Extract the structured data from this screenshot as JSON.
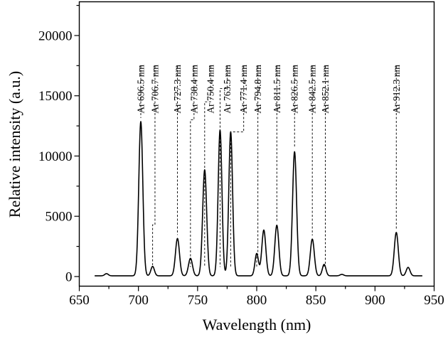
{
  "chart_data": {
    "type": "line",
    "xlabel": "Wavelength (nm)",
    "ylabel": "Relative intensity (a.u.)",
    "xlim": [
      650,
      950
    ],
    "ylim": [
      -800,
      22800
    ],
    "xticks": [
      650,
      700,
      750,
      800,
      850,
      900,
      950
    ],
    "yticks": [
      0,
      5000,
      10000,
      15000,
      20000
    ],
    "baseline": 60,
    "peaks": [
      {
        "x": 673,
        "y": 180,
        "w": 1.5
      },
      {
        "x": 702,
        "y": 12800,
        "w": 1.7
      },
      {
        "x": 712,
        "y": 780,
        "w": 1.5
      },
      {
        "x": 733,
        "y": 3100,
        "w": 1.7
      },
      {
        "x": 744,
        "y": 1450,
        "w": 1.7
      },
      {
        "x": 756,
        "y": 8800,
        "w": 1.7
      },
      {
        "x": 769,
        "y": 12100,
        "w": 1.6
      },
      {
        "x": 778,
        "y": 11950,
        "w": 1.6
      },
      {
        "x": 800,
        "y": 1850,
        "w": 1.5
      },
      {
        "x": 806,
        "y": 3800,
        "w": 1.7
      },
      {
        "x": 817,
        "y": 4200,
        "w": 1.7
      },
      {
        "x": 832,
        "y": 10300,
        "w": 1.7
      },
      {
        "x": 847,
        "y": 3050,
        "w": 1.7
      },
      {
        "x": 857,
        "y": 950,
        "w": 1.5
      },
      {
        "x": 872,
        "y": 120,
        "w": 1.5
      },
      {
        "x": 918,
        "y": 3600,
        "w": 1.7
      },
      {
        "x": 928,
        "y": 700,
        "w": 1.6
      }
    ],
    "annotations": [
      {
        "label": "Ar 696.5 nm",
        "peak_x": 702,
        "slot_x": 702,
        "join_y": 12800
      },
      {
        "label": "Ar 706.7 nm",
        "peak_x": 712,
        "slot_x": 714,
        "join_y": 4300
      },
      {
        "label": "Ar 727.3 nm",
        "peak_x": 733,
        "slot_x": 733,
        "join_y": 3100
      },
      {
        "label": "Ar 738.4 nm",
        "peak_x": 744,
        "slot_x": 747,
        "join_y": 13000
      },
      {
        "label": "Ar 750.4 nm",
        "peak_x": 756,
        "slot_x": 761,
        "join_y": 14500
      },
      {
        "label": "Ar 763.5 nm",
        "peak_x": 769,
        "slot_x": 775,
        "join_y": 15600
      },
      {
        "label": "Ar 771.4 nm",
        "peak_x": 778,
        "slot_x": 789,
        "join_y": 12000
      },
      {
        "label": "Ar 794.8 nm",
        "peak_x": 800,
        "slot_x": 801,
        "join_y": 1850
      },
      {
        "label": "Ar 811.5 nm",
        "peak_x": 817,
        "slot_x": 817,
        "join_y": 4200
      },
      {
        "label": "Ar 826.5 nm",
        "peak_x": 832,
        "slot_x": 832,
        "join_y": 10300
      },
      {
        "label": "Ar 842.5 nm",
        "peak_x": 847,
        "slot_x": 847,
        "join_y": 3050
      },
      {
        "label": "Ar 852.1 nm",
        "peak_x": 857,
        "slot_x": 858,
        "join_y": 950
      },
      {
        "label": "Ar 912.3 nm",
        "peak_x": 918,
        "slot_x": 918,
        "join_y": 3600
      }
    ],
    "line_color": "#000000"
  }
}
